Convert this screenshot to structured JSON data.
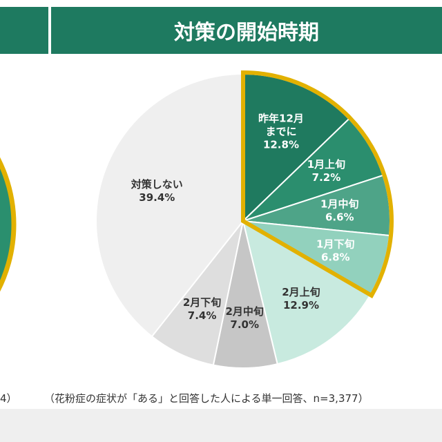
{
  "header": {
    "title": "対策の開始時期"
  },
  "note_left": "4）",
  "note": "（花粉症の症状が「ある」と回答した人による単一回答、n=3,377）",
  "chart_data": {
    "type": "pie",
    "title": "対策の開始時期",
    "start": "12 o'clock, clockwise",
    "highlight_color": "#e2b100",
    "highlighted": [
      "昨年12月までに",
      "1月上旬",
      "1月中旬",
      "1月下旬"
    ],
    "slices": [
      {
        "label": "昨年12月までに",
        "lines": [
          "昨年12月",
          "までに"
        ],
        "value": 12.8,
        "text": "12.8%",
        "color": "#1f7a5f"
      },
      {
        "label": "1月上旬",
        "lines": [
          "1月上旬"
        ],
        "value": 7.2,
        "text": "7.2%",
        "color": "#2b8e6e"
      },
      {
        "label": "1月中旬",
        "lines": [
          "1月中旬"
        ],
        "value": 6.6,
        "text": "6.6%",
        "color": "#4ea488"
      },
      {
        "label": "1月下旬",
        "lines": [
          "1月下旬"
        ],
        "value": 6.8,
        "text": "6.8%",
        "color": "#92d1bd"
      },
      {
        "label": "2月上旬",
        "lines": [
          "2月上旬"
        ],
        "value": 12.9,
        "text": "12.9%",
        "color": "#c8eadf"
      },
      {
        "label": "2月中旬",
        "lines": [
          "2月中旬"
        ],
        "value": 7.0,
        "text": "7.0%",
        "color": "#c6c6c6"
      },
      {
        "label": "2月下旬",
        "lines": [
          "2月下旬"
        ],
        "value": 7.4,
        "text": "7.4%",
        "color": "#dedede"
      },
      {
        "label": "対策しない",
        "lines": [
          "対策しない"
        ],
        "value": 39.4,
        "text": "39.4%",
        "color": "#efefef"
      }
    ]
  }
}
